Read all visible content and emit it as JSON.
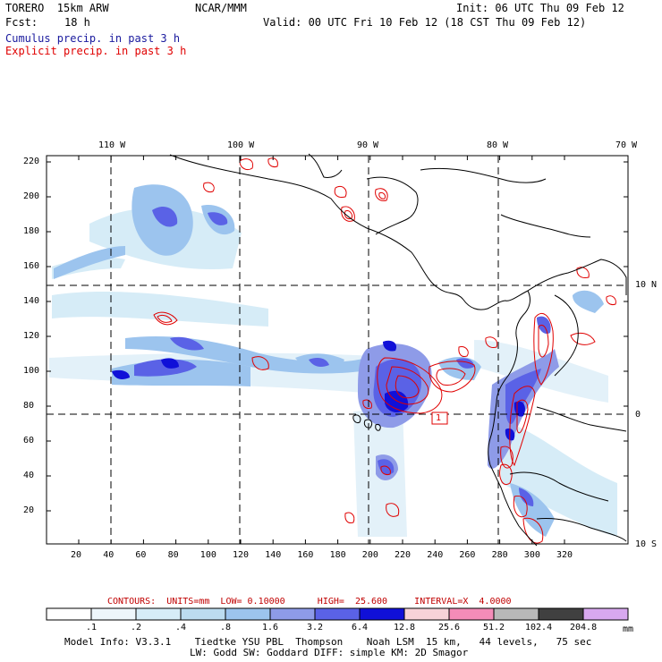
{
  "header": {
    "model": "TORERO  15km ARW",
    "org": "NCAR/MMM",
    "init": "Init: 06 UTC Thu 09 Feb 12",
    "fcst_label": "Fcst:",
    "fcst_value": "18 h",
    "valid": "Valid: 00 UTC Fri 10 Feb 12 (18 CST Thu 09 Feb 12)",
    "field1": "Cumulus precip. in past 3 h",
    "field2": "Explicit precip. in past 3 h"
  },
  "colors": {
    "field1": "#1a1a9e",
    "field2": "#e00000",
    "contour": "#e00000"
  },
  "map": {
    "lon_labels": [
      "110 W",
      "100 W",
      "90 W",
      "80 W",
      "70 W"
    ],
    "lat_labels": [
      "10 N",
      "0",
      "10 S"
    ],
    "y_ticks": [
      "220",
      "200",
      "180",
      "160",
      "140",
      "120",
      "100",
      "80",
      "60",
      "40",
      "20"
    ],
    "x_ticks": [
      "20",
      "40",
      "60",
      "80",
      "100",
      "120",
      "140",
      "160",
      "180",
      "200",
      "220",
      "240",
      "260",
      "280",
      "300",
      "320"
    ],
    "contour_box_label": "1"
  },
  "legend": {
    "contours_line": "CONTOURS:  UNITS=mm  LOW= 0.10000      HIGH=  25.600     INTERVAL=X  4.0000",
    "units": "mm",
    "labels": [
      ".1",
      ".2",
      ".4",
      ".8",
      "1.6",
      "3.2",
      "6.4",
      "12.8",
      "25.6",
      "51.2",
      "102.4",
      "204.8"
    ],
    "colors": [
      "#ffffff",
      "#eef6fb",
      "#d6ecf7",
      "#bcdcf0",
      "#9cc4ee",
      "#8e9be8",
      "#5a62e6",
      "#1010d8",
      "#f7d2d8",
      "#f48cb8",
      "#b8b8b8",
      "#404040",
      "#d8a8f0"
    ]
  },
  "footer": {
    "line1": "Model Info: V3.3.1    Tiedtke YSU PBL  Thompson    Noah LSM  15 km,   44 levels,   75 sec",
    "line2": "LW: Godd SW: Goddard DIFF: simple KM: 2D Smagor"
  }
}
